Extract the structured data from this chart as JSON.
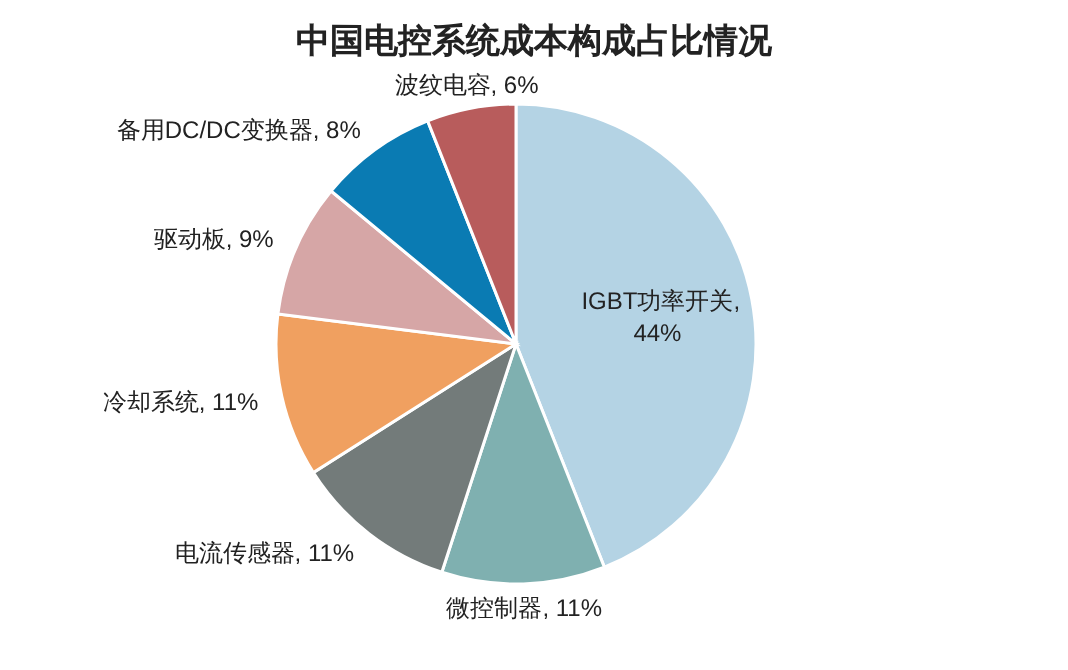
{
  "chart_data": {
    "type": "pie",
    "title": "中国电控系统成本构成占比情况",
    "categories": [
      "IGBT功率开关",
      "微控制器",
      "电流传感器",
      "冷却系统",
      "驱动板",
      "备用DC/DC变换器",
      "波纹电容"
    ],
    "values": [
      44,
      11,
      11,
      11,
      9,
      8,
      6
    ],
    "colors": [
      "#b4d3e4",
      "#7fb0b0",
      "#737b7a",
      "#f0a060",
      "#d6a6a6",
      "#0a7bb3",
      "#b85c5c"
    ],
    "value_labels": [
      ", 44%",
      ", 11%",
      ", 11%",
      ", 11%",
      ", 9%",
      ", 8%",
      ", 6%"
    ]
  }
}
